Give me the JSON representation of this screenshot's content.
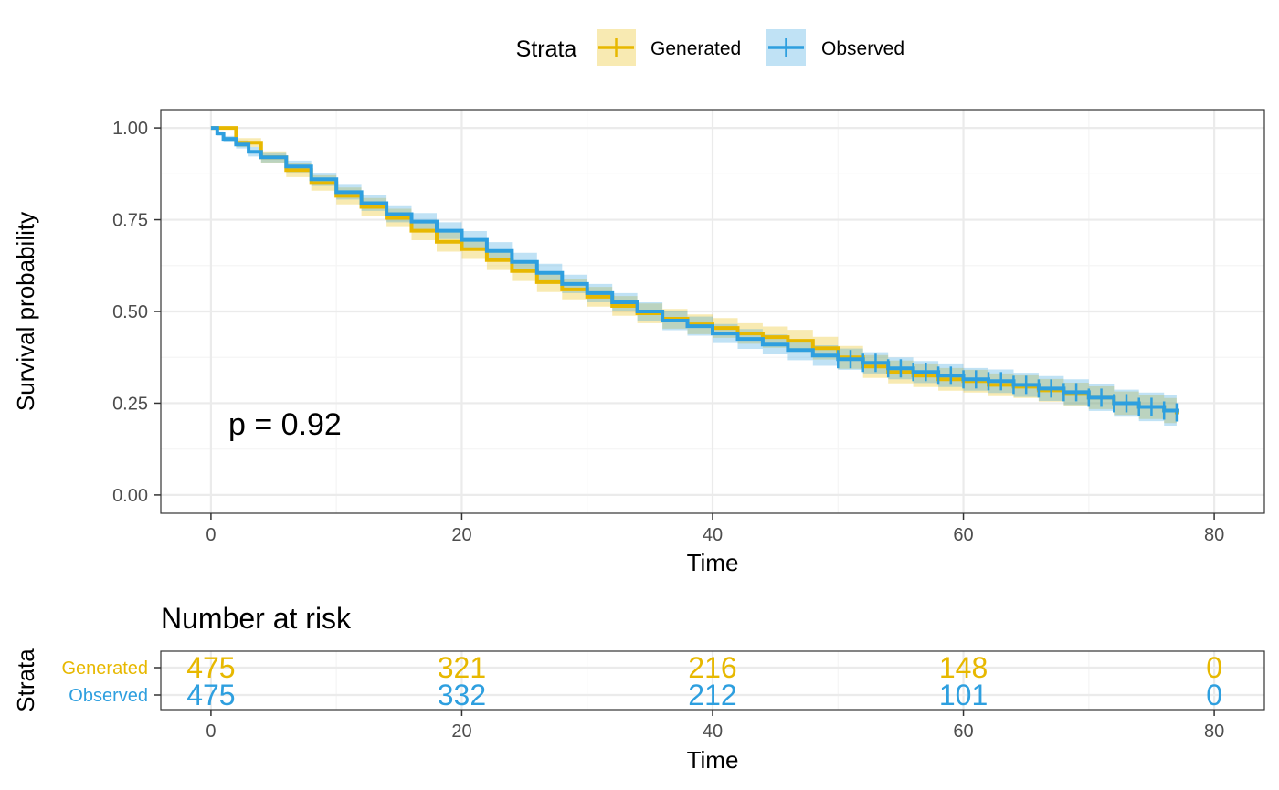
{
  "legend": {
    "title": "Strata",
    "items": [
      "Generated",
      "Observed"
    ]
  },
  "colors": {
    "generated": "#E7B800",
    "observed": "#2E9FDF",
    "grid_major": "#EBEBEB",
    "grid_minor": "#F5F5F5",
    "axis_text": "#4D4D4D",
    "text": "#000000"
  },
  "chart_data": [
    {
      "type": "line",
      "subtype": "kaplan-meier step curve with confidence bands and censor marks",
      "xlabel": "Time",
      "ylabel": "Survival probability",
      "xlim": [
        -4,
        84
      ],
      "ylim": [
        -0.05,
        1.05
      ],
      "x_ticks": [
        0,
        20,
        40,
        60,
        80
      ],
      "y_ticks": [
        0.0,
        0.25,
        0.5,
        0.75,
        1.0
      ],
      "y_tick_labels": [
        "0.00",
        "0.25",
        "0.50",
        "0.75",
        "1.00"
      ],
      "grid": true,
      "annotation": "p = 0.92",
      "series": [
        {
          "name": "Generated",
          "x": [
            0,
            2,
            4,
            6,
            8,
            10,
            12,
            14,
            16,
            18,
            20,
            22,
            24,
            26,
            28,
            30,
            32,
            34,
            36,
            38,
            40,
            42,
            44,
            46,
            48,
            50,
            52,
            54,
            56,
            58,
            60,
            62,
            64,
            66,
            68,
            70,
            72,
            74,
            76,
            77
          ],
          "values": [
            1.0,
            0.96,
            0.92,
            0.885,
            0.85,
            0.815,
            0.785,
            0.755,
            0.72,
            0.69,
            0.67,
            0.64,
            0.61,
            0.58,
            0.56,
            0.54,
            0.515,
            0.495,
            0.48,
            0.465,
            0.455,
            0.44,
            0.43,
            0.42,
            0.4,
            0.375,
            0.35,
            0.335,
            0.325,
            0.315,
            0.31,
            0.3,
            0.295,
            0.285,
            0.275,
            0.265,
            0.25,
            0.24,
            0.23,
            0.22
          ],
          "band_halfwidth": [
            0.0,
            0.012,
            0.016,
            0.019,
            0.021,
            0.023,
            0.024,
            0.025,
            0.026,
            0.027,
            0.027,
            0.027,
            0.027,
            0.027,
            0.027,
            0.027,
            0.027,
            0.027,
            0.027,
            0.027,
            0.027,
            0.028,
            0.029,
            0.03,
            0.031,
            0.031,
            0.031,
            0.031,
            0.031,
            0.031,
            0.031,
            0.031,
            0.031,
            0.031,
            0.031,
            0.031,
            0.032,
            0.033,
            0.034,
            0.035
          ],
          "censor_x": []
        },
        {
          "name": "Observed",
          "x": [
            0,
            0.5,
            1,
            2,
            3,
            4,
            6,
            8,
            10,
            12,
            14,
            16,
            18,
            20,
            22,
            24,
            26,
            28,
            30,
            32,
            34,
            36,
            38,
            40,
            42,
            44,
            46,
            48,
            50,
            52,
            54,
            56,
            58,
            60,
            62,
            64,
            66,
            68,
            70,
            72,
            74,
            76,
            77
          ],
          "values": [
            1.0,
            0.985,
            0.97,
            0.955,
            0.935,
            0.92,
            0.895,
            0.86,
            0.825,
            0.795,
            0.765,
            0.745,
            0.72,
            0.695,
            0.665,
            0.635,
            0.605,
            0.575,
            0.55,
            0.525,
            0.5,
            0.475,
            0.46,
            0.44,
            0.425,
            0.41,
            0.395,
            0.38,
            0.37,
            0.36,
            0.345,
            0.335,
            0.325,
            0.315,
            0.31,
            0.3,
            0.29,
            0.28,
            0.265,
            0.25,
            0.24,
            0.23,
            0.225
          ],
          "band_halfwidth": [
            0.0,
            0.006,
            0.008,
            0.011,
            0.013,
            0.014,
            0.016,
            0.018,
            0.02,
            0.021,
            0.022,
            0.023,
            0.023,
            0.024,
            0.024,
            0.025,
            0.025,
            0.025,
            0.025,
            0.025,
            0.025,
            0.026,
            0.026,
            0.026,
            0.027,
            0.027,
            0.028,
            0.028,
            0.029,
            0.029,
            0.03,
            0.03,
            0.031,
            0.031,
            0.032,
            0.033,
            0.034,
            0.035,
            0.036,
            0.037,
            0.039,
            0.041,
            0.042
          ],
          "censor_x": [
            50,
            51,
            52,
            53,
            54,
            55,
            56,
            57,
            58,
            59,
            60,
            61,
            62,
            63,
            64,
            65,
            66,
            67,
            68,
            69,
            70,
            71,
            72,
            73,
            74,
            75,
            76,
            77
          ]
        }
      ]
    },
    {
      "type": "table",
      "title": "Number at risk",
      "xlabel": "Time",
      "ylabel": "Strata",
      "xlim": [
        -4,
        84
      ],
      "x_ticks": [
        0,
        20,
        40,
        60,
        80
      ],
      "rows": [
        {
          "name": "Generated",
          "times": [
            0,
            20,
            40,
            60,
            80
          ],
          "values": [
            "475",
            "321",
            "216",
            "148",
            "0"
          ]
        },
        {
          "name": "Observed",
          "times": [
            0,
            20,
            40,
            60,
            80
          ],
          "values": [
            "475",
            "332",
            "212",
            "101",
            "0"
          ]
        }
      ]
    }
  ]
}
